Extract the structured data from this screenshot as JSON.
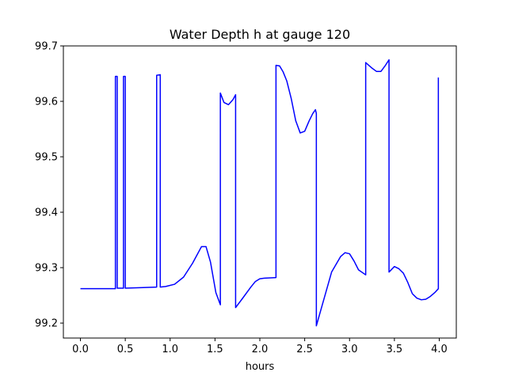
{
  "chart_data": {
    "type": "line",
    "title": "Water Depth h at gauge 120",
    "xlabel": "hours",
    "ylabel": "",
    "xlim": [
      -0.19,
      4.19
    ],
    "ylim": [
      99.173,
      99.7
    ],
    "xticks": [
      0.0,
      0.5,
      1.0,
      1.5,
      2.0,
      2.5,
      3.0,
      3.5,
      4.0
    ],
    "xtick_labels": [
      "0.0",
      "0.5",
      "1.0",
      "1.5",
      "2.0",
      "2.5",
      "3.0",
      "3.5",
      "4.0"
    ],
    "yticks": [
      99.2,
      99.3,
      99.4,
      99.5,
      99.6,
      99.7
    ],
    "ytick_labels": [
      "99.2",
      "99.3",
      "99.4",
      "99.5",
      "99.6",
      "99.7"
    ],
    "grid": false,
    "legend": "none",
    "series": [
      {
        "color": "#0000ff",
        "x": [
          0.0,
          0.39,
          0.39,
          0.41,
          0.41,
          0.48,
          0.48,
          0.5,
          0.5,
          0.7,
          0.85,
          0.85,
          0.89,
          0.89,
          0.95,
          1.05,
          1.15,
          1.25,
          1.35,
          1.4,
          1.45,
          1.51,
          1.56,
          1.56,
          1.6,
          1.65,
          1.7,
          1.73,
          1.73,
          1.8,
          1.9,
          1.95,
          2.0,
          2.05,
          2.18,
          2.18,
          2.22,
          2.26,
          2.3,
          2.35,
          2.4,
          2.45,
          2.5,
          2.55,
          2.59,
          2.62,
          2.63,
          2.63,
          2.7,
          2.8,
          2.9,
          2.95,
          3.0,
          3.05,
          3.1,
          3.18,
          3.18,
          3.25,
          3.3,
          3.35,
          3.4,
          3.44,
          3.44,
          3.5,
          3.55,
          3.6,
          3.65,
          3.7,
          3.75,
          3.8,
          3.85,
          3.9,
          3.95,
          3.99,
          3.99
        ],
        "y": [
          99.262,
          99.262,
          99.645,
          99.645,
          99.263,
          99.263,
          99.645,
          99.645,
          99.263,
          99.264,
          99.265,
          99.647,
          99.648,
          99.265,
          99.266,
          99.27,
          99.283,
          99.308,
          99.338,
          99.338,
          99.31,
          99.255,
          99.233,
          99.615,
          99.598,
          99.594,
          99.603,
          99.612,
          99.228,
          99.243,
          99.265,
          99.275,
          99.28,
          99.281,
          99.282,
          99.665,
          99.664,
          99.653,
          99.637,
          99.605,
          99.565,
          99.543,
          99.546,
          99.565,
          99.578,
          99.585,
          99.578,
          99.195,
          99.235,
          99.292,
          99.32,
          99.327,
          99.325,
          99.312,
          99.296,
          99.287,
          99.67,
          99.66,
          99.654,
          99.654,
          99.665,
          99.675,
          99.292,
          99.302,
          99.298,
          99.29,
          99.273,
          99.253,
          99.245,
          99.242,
          99.243,
          99.248,
          99.255,
          99.262,
          99.643
        ]
      }
    ]
  }
}
